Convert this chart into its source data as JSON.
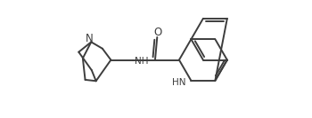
{
  "background_color": "#ffffff",
  "line_color": "#3d3d3d",
  "line_width": 1.4,
  "N_label": "N",
  "NH_label": "NH",
  "HN_label": "HN",
  "O_label": "O",
  "font_size": 8.0
}
